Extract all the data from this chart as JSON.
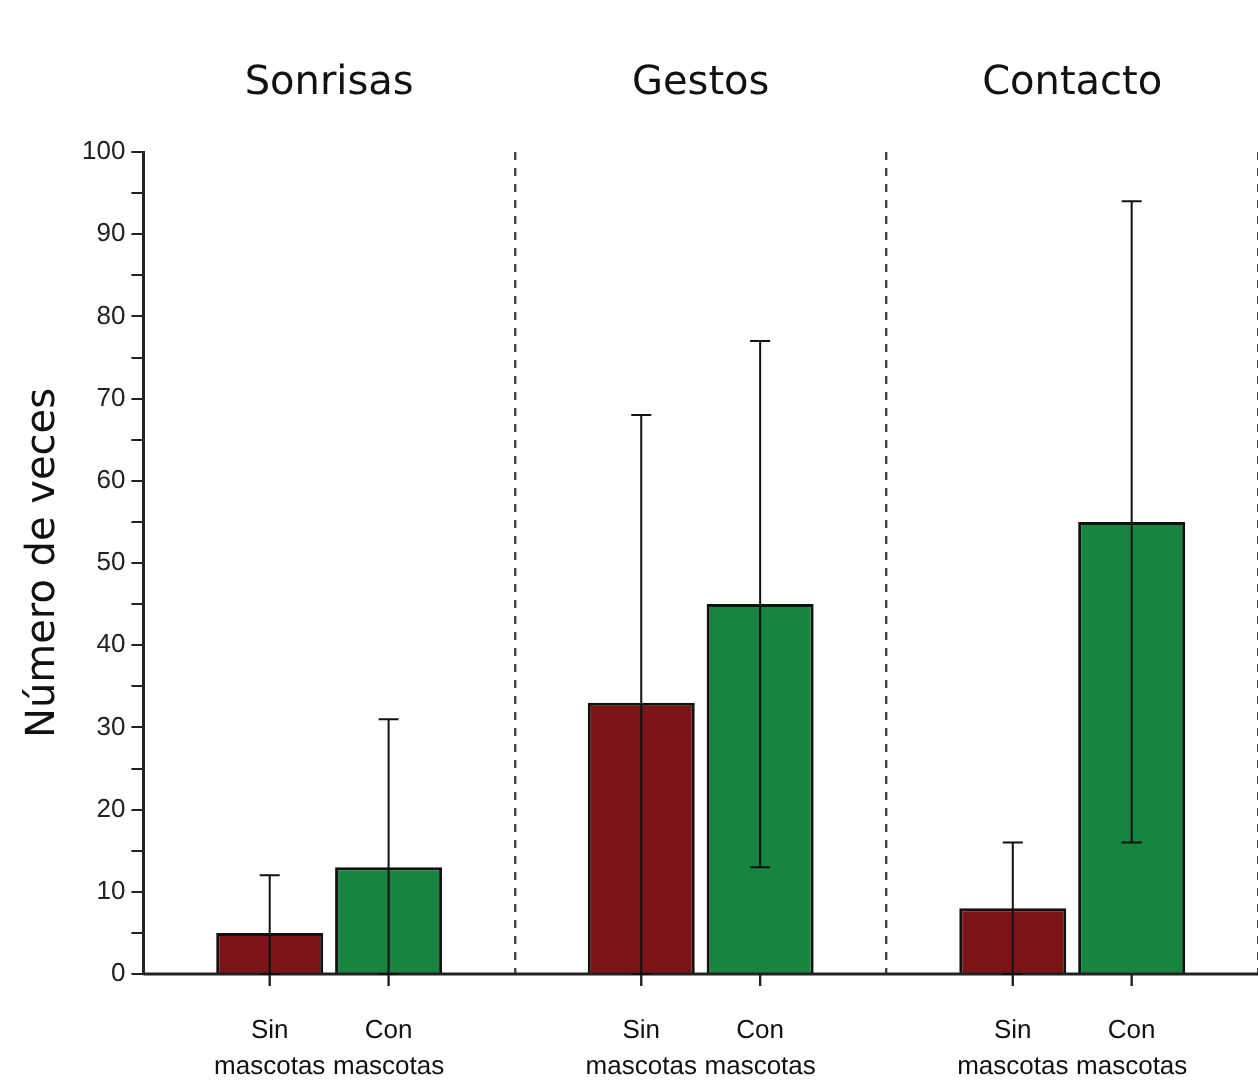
{
  "chart_data": {
    "type": "bar",
    "ylabel": "Número de veces",
    "categories": [
      "Sonrisas",
      "Gestos",
      "Contacto"
    ],
    "series": [
      {
        "name": "Sin mascotas",
        "color": "#7b1416",
        "values": [
          5,
          33,
          8
        ],
        "errors": [
          [
            0,
            12
          ],
          [
            0,
            68
          ],
          [
            0,
            16
          ]
        ]
      },
      {
        "name": "Con mascotas",
        "color": "#17843f",
        "values": [
          13,
          45,
          55
        ],
        "errors": [
          [
            0,
            31
          ],
          [
            13,
            77
          ],
          [
            16,
            94
          ]
        ]
      }
    ],
    "ylim": [
      0,
      100
    ],
    "yticks": [
      0,
      {
        "value": 5,
        "label": null
      },
      10,
      {
        "value": 15,
        "label": null
      },
      20,
      {
        "value": 25,
        "label": null
      },
      30,
      {
        "value": 35,
        "label": null
      },
      40,
      {
        "value": 45,
        "label": null
      },
      50,
      {
        "value": 55,
        "label": null
      },
      60,
      {
        "value": 65,
        "label": null
      },
      70,
      {
        "value": 75,
        "label": null
      },
      80,
      {
        "value": 85,
        "label": null
      },
      90,
      {
        "value": 95,
        "label": null
      },
      100
    ],
    "grid": "x",
    "legend": false,
    "line_style": "dashed"
  }
}
